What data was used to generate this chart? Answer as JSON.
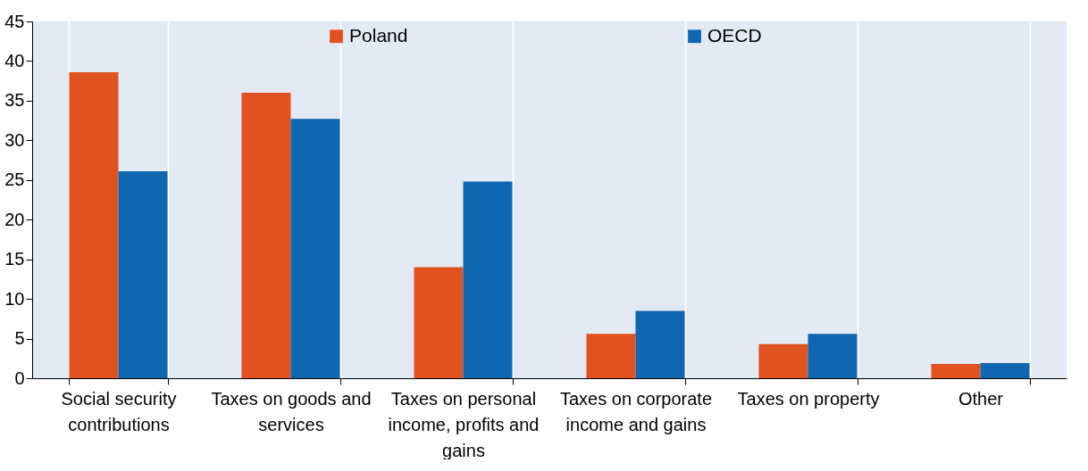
{
  "chart_data": {
    "type": "bar",
    "categories": [
      "Social security contributions",
      "Taxes on goods and services",
      "Taxes on personal income, profits and gains",
      "Taxes on corporate income and gains",
      "Taxes on property",
      "Other"
    ],
    "series": [
      {
        "name": "Poland",
        "color": "#e0521f",
        "values": [
          38.6,
          36.0,
          14.0,
          5.6,
          4.3,
          1.8
        ]
      },
      {
        "name": "OECD",
        "color": "#0f67b1",
        "values": [
          26.1,
          32.7,
          24.8,
          8.5,
          5.6,
          1.9
        ]
      }
    ],
    "ylim": [
      0,
      45
    ],
    "yticks": [
      0,
      5,
      10,
      15,
      20,
      25,
      30,
      35,
      40,
      45
    ],
    "grid": "x",
    "legend": "top"
  }
}
